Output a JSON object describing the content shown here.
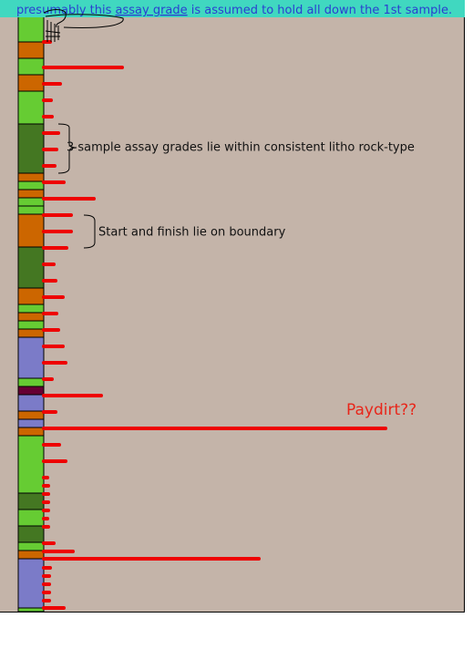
{
  "header": {
    "before": "presumably this",
    "link": "assay grade",
    "after": "is assumed to hold all down the 1st sample."
  },
  "annotations": {
    "consistent": "3 sample assay grades lie within consistent litho rock-type",
    "boundary": "Start and finish lie on boundary",
    "paydirt": "Paydirt??"
  }
}
